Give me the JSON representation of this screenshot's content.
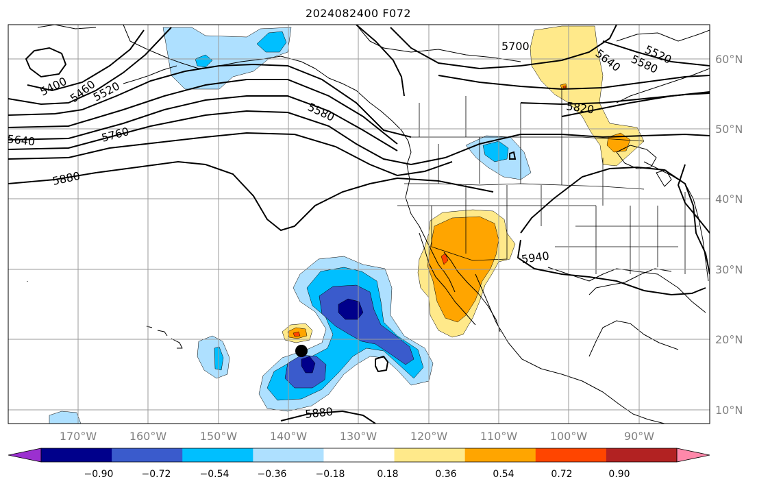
{
  "title": "2024082400 F072",
  "lat_labels": [
    "60°N",
    "50°N",
    "40°N",
    "30°N",
    "20°N",
    "10°N"
  ],
  "lon_labels": [
    "170°W",
    "160°W",
    "150°W",
    "140°W",
    "130°W",
    "120°W",
    "110°W",
    "100°W",
    "90°W"
  ],
  "contour_labels": [
    "5400",
    "5460",
    "5520",
    "5580",
    "5640",
    "5700",
    "5760",
    "5820",
    "5880",
    "5940",
    "5520",
    "5580",
    "5640",
    "5880"
  ],
  "colorbar": {
    "tick_labels": [
      "−0.90",
      "−0.72",
      "−0.54",
      "−0.36",
      "−0.18",
      "0.18",
      "0.36",
      "0.54",
      "0.72",
      "0.90"
    ],
    "colors": [
      "#9b30d0",
      "#00008b",
      "#3a5bcc",
      "#00bfff",
      "#aee0ff",
      "#ffffff",
      "#ffe98a",
      "#ffa500",
      "#ff4500",
      "#b22222",
      "#ff88aa"
    ]
  },
  "fill_colors": {
    "neg_light": "#aee0ff",
    "neg_mid": "#00bfff",
    "neg_strong": "#3a5bcc",
    "neg_max": "#00008b",
    "pos_light": "#ffe98a",
    "pos_mid": "#ffa500",
    "pos_strong": "#ff4500"
  }
}
